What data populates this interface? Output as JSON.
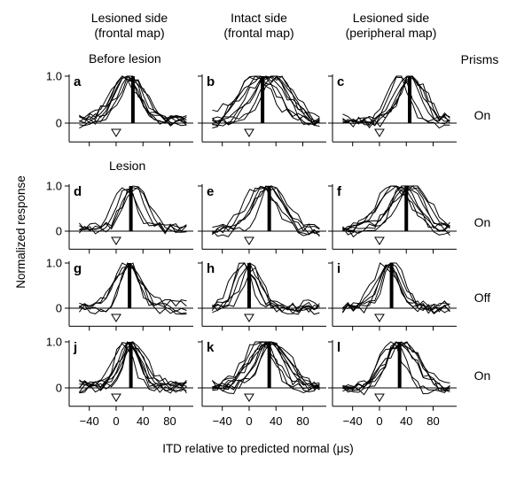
{
  "columns": [
    {
      "line1": "Lesioned side",
      "line2": "(frontal map)"
    },
    {
      "line1": "Intact side",
      "line2": "(frontal map)"
    },
    {
      "line1": "Lesioned side",
      "line2": "(peripheral map)"
    }
  ],
  "notes": {
    "before_lesion": "Before lesion",
    "lesion": "Lesion",
    "prisms": "Prisms"
  },
  "chart_data": {
    "type": "line",
    "xlabel": "ITD relative to predicted normal (μs)",
    "ylabel": "Normalized response",
    "xlim": [
      -70,
      115
    ],
    "ylim": [
      -0.4,
      1.0
    ],
    "x_ticks": [
      -40,
      0,
      40,
      80
    ],
    "x_tick_labels": [
      "−40",
      "0",
      "40",
      "80"
    ],
    "y_ticks": [
      0,
      1.0
    ],
    "y_tick_labels": [
      "0",
      "1.0"
    ],
    "predicted_normal_marker": "open triangle at ITD 0",
    "rows": [
      {
        "condition": "On"
      },
      {
        "condition": "On"
      },
      {
        "condition": "Off"
      },
      {
        "condition": "On"
      }
    ],
    "panels": [
      {
        "letter": "a",
        "row": 0,
        "col": 0,
        "best_itd": 25,
        "center": 20,
        "width": 28,
        "curves": 8
      },
      {
        "letter": "b",
        "row": 0,
        "col": 1,
        "best_itd": 20,
        "center": 25,
        "width": 42,
        "curves": 9
      },
      {
        "letter": "c",
        "row": 0,
        "col": 2,
        "best_itd": 45,
        "center": 38,
        "width": 30,
        "curves": 7
      },
      {
        "letter": "d",
        "row": 1,
        "col": 0,
        "best_itd": 22,
        "center": 20,
        "width": 22,
        "curves": 5
      },
      {
        "letter": "e",
        "row": 1,
        "col": 1,
        "best_itd": 30,
        "center": 28,
        "width": 30,
        "curves": 6
      },
      {
        "letter": "f",
        "row": 1,
        "col": 2,
        "best_itd": 40,
        "center": 35,
        "width": 32,
        "curves": 8
      },
      {
        "letter": "g",
        "row": 2,
        "col": 0,
        "best_itd": 20,
        "center": 18,
        "width": 22,
        "curves": 5
      },
      {
        "letter": "h",
        "row": 2,
        "col": 1,
        "best_itd": 0,
        "center": 0,
        "width": 24,
        "curves": 6
      },
      {
        "letter": "i",
        "row": 2,
        "col": 2,
        "best_itd": 18,
        "center": 15,
        "width": 22,
        "curves": 6
      },
      {
        "letter": "j",
        "row": 3,
        "col": 0,
        "best_itd": 22,
        "center": 20,
        "width": 26,
        "curves": 8
      },
      {
        "letter": "k",
        "row": 3,
        "col": 1,
        "best_itd": 30,
        "center": 28,
        "width": 32,
        "curves": 9
      },
      {
        "letter": "l",
        "row": 3,
        "col": 2,
        "best_itd": 30,
        "center": 25,
        "width": 30,
        "curves": 7
      }
    ]
  }
}
